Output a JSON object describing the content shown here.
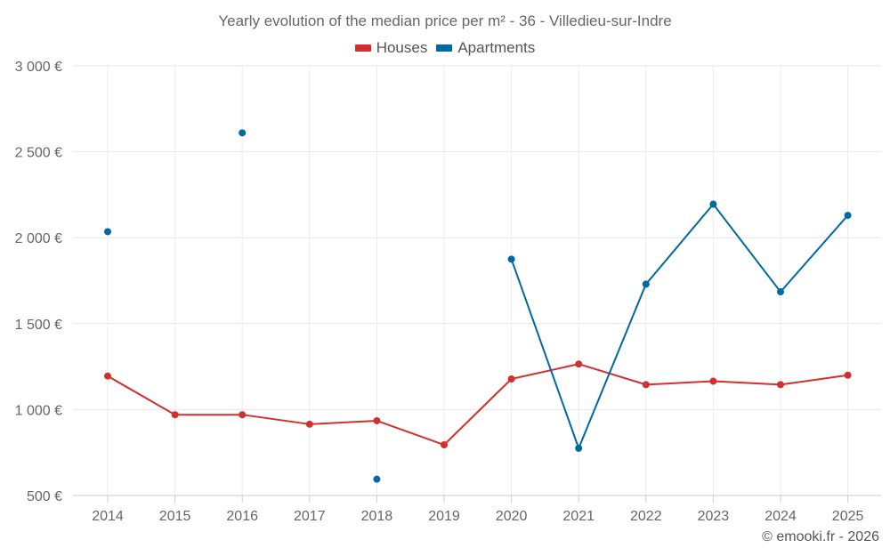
{
  "chart_data": {
    "type": "line",
    "title": "Yearly evolution of the median price per m² - 36 - Villedieu-sur-Indre",
    "categories": [
      "2014",
      "2015",
      "2016",
      "2017",
      "2018",
      "2019",
      "2020",
      "2021",
      "2022",
      "2023",
      "2024",
      "2025"
    ],
    "y_tick_labels": [
      "3 000 €",
      "2 500 €",
      "2 000 €",
      "1 500 €",
      "1 000 €",
      "500 €"
    ],
    "y_ticks": [
      3000,
      2500,
      2000,
      1500,
      1000,
      500
    ],
    "ylim": [
      500,
      3000
    ],
    "xlabel": "",
    "ylabel": "",
    "grid": true,
    "legend_position": "top-center",
    "series": [
      {
        "name": "Houses",
        "color": "#d32f2f",
        "values": [
          1195,
          970,
          970,
          915,
          935,
          795,
          1178,
          1265,
          1145,
          1165,
          1145,
          1200
        ]
      },
      {
        "name": "Apartments",
        "color": "#0069a0",
        "values": [
          2035,
          null,
          2610,
          null,
          595,
          null,
          1875,
          775,
          1730,
          2195,
          1685,
          2130
        ]
      }
    ]
  },
  "legend": {
    "houses_label": "Houses",
    "apartments_label": "Apartments",
    "houses_color": "#d32f2f",
    "apartments_color": "#0069a0"
  },
  "footer": {
    "credit": "© emooki.fr - 2026"
  }
}
